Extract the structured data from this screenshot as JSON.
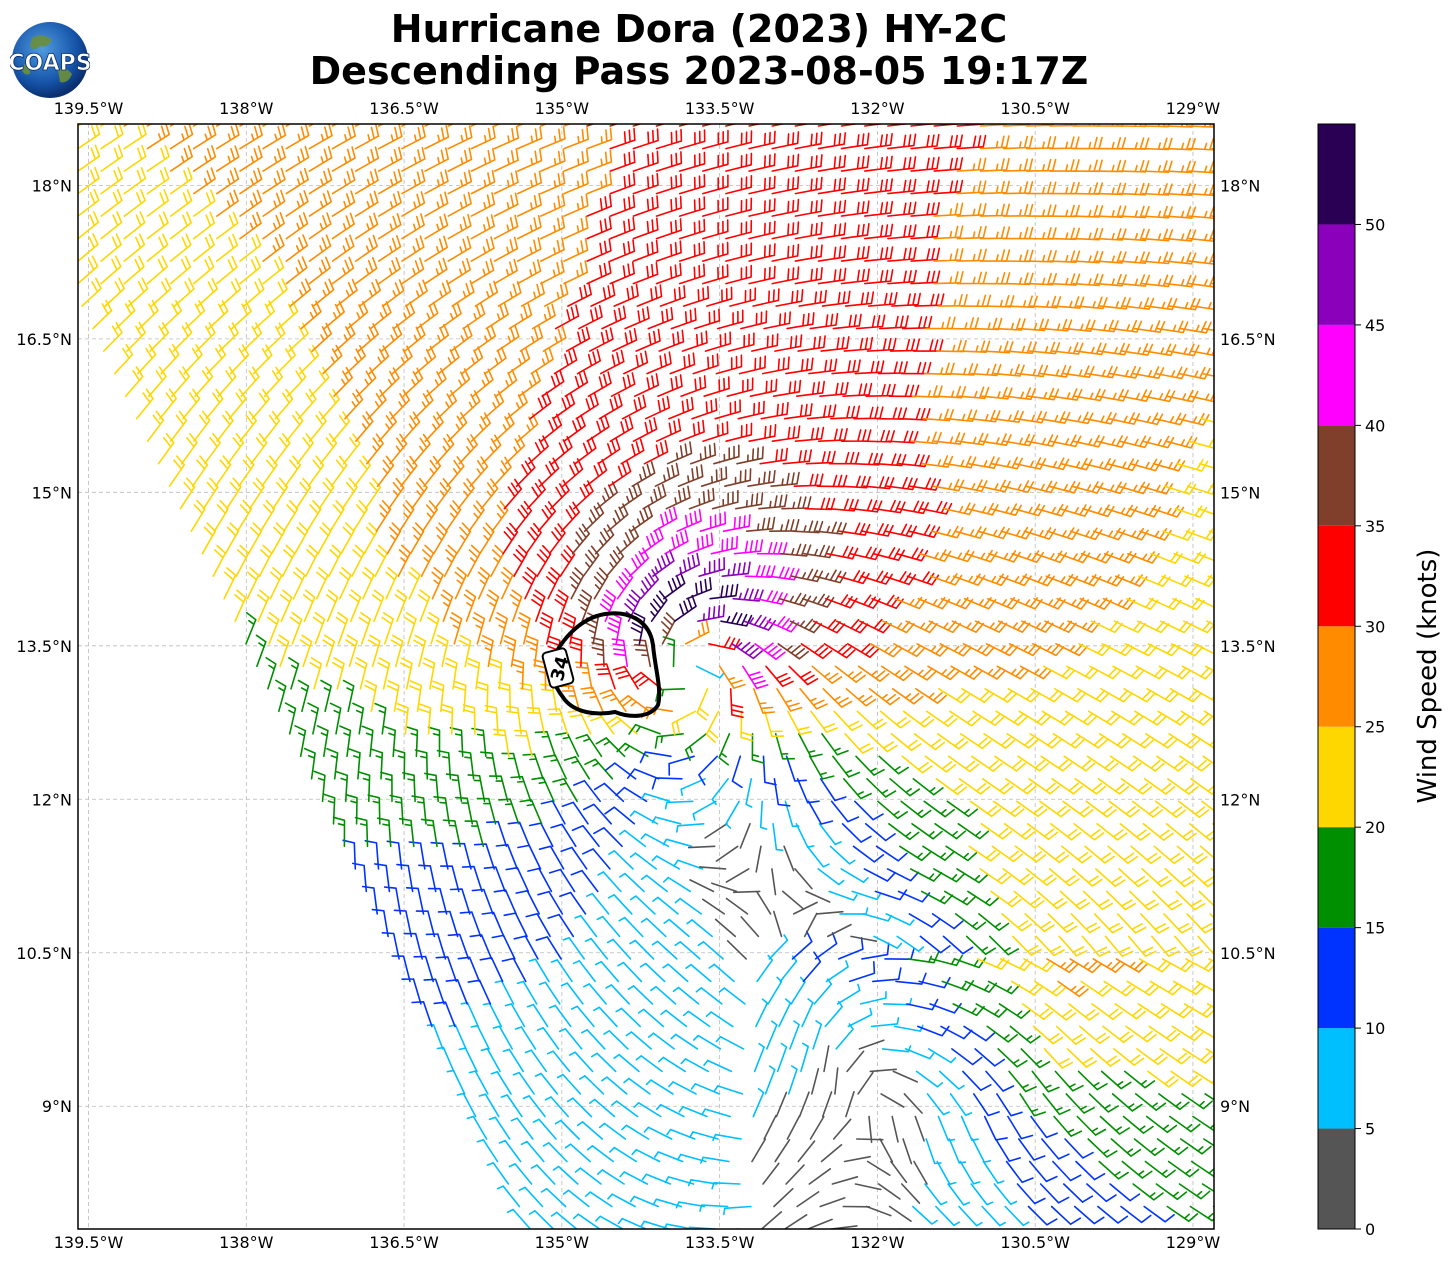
{
  "header": {
    "title_line1": "Hurricane Dora (2023) HY-2C",
    "title_line2": "Descending Pass 2023-08-05 19:17Z",
    "logo_text": "COAPS"
  },
  "map": {
    "lon_range": [
      -139.6,
      -128.8
    ],
    "lat_range": [
      7.8,
      18.6
    ],
    "lon_ticks": [
      {
        "value": -139.5,
        "label": "139.5°W"
      },
      {
        "value": -138,
        "label": "138°W"
      },
      {
        "value": -136.5,
        "label": "136.5°W"
      },
      {
        "value": -135,
        "label": "135°W"
      },
      {
        "value": -133.5,
        "label": "133.5°W"
      },
      {
        "value": -132,
        "label": "132°W"
      },
      {
        "value": -130.5,
        "label": "130.5°W"
      },
      {
        "value": -129,
        "label": "129°W"
      }
    ],
    "lat_ticks": [
      {
        "value": 18,
        "label": "18°N"
      },
      {
        "value": 16.5,
        "label": "16.5°N"
      },
      {
        "value": 15,
        "label": "15°N"
      },
      {
        "value": 13.5,
        "label": "13.5°N"
      },
      {
        "value": 12,
        "label": "12°N"
      },
      {
        "value": 10.5,
        "label": "10.5°N"
      },
      {
        "value": 9,
        "label": "9°N"
      }
    ],
    "grid": true,
    "storm_center": {
      "lon": -133.8,
      "lat": 13.4
    },
    "contour_label": "34"
  },
  "colorbar": {
    "label": "Wind Speed (knots)",
    "bins": [
      {
        "min": 0,
        "max": 5,
        "color": "#555555"
      },
      {
        "min": 5,
        "max": 10,
        "color": "#00bfff"
      },
      {
        "min": 10,
        "max": 15,
        "color": "#0033ff"
      },
      {
        "min": 15,
        "max": 20,
        "color": "#008f00"
      },
      {
        "min": 20,
        "max": 25,
        "color": "#ffd700"
      },
      {
        "min": 25,
        "max": 30,
        "color": "#ff8c00"
      },
      {
        "min": 30,
        "max": 35,
        "color": "#ff0000"
      },
      {
        "min": 35,
        "max": 40,
        "color": "#7f3f2a"
      },
      {
        "min": 40,
        "max": 45,
        "color": "#ff00ff"
      },
      {
        "min": 45,
        "max": 50,
        "color": "#8b00bb"
      },
      {
        "min": 50,
        "max": 55,
        "color": "#2a0055"
      }
    ],
    "ticks": [
      "0",
      "5",
      "10",
      "15",
      "20",
      "25",
      "30",
      "35",
      "40",
      "45",
      "50"
    ]
  }
}
